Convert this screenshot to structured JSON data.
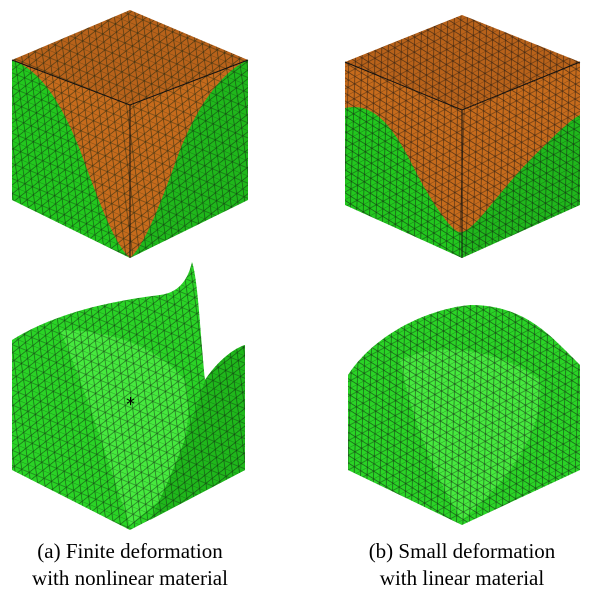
{
  "panels": [
    {
      "caption_lines": [
        "(a) Finite deformation",
        "with nonlinear material"
      ]
    },
    {
      "caption_lines": [
        "(b) Small deformation",
        "with linear material"
      ]
    }
  ]
}
